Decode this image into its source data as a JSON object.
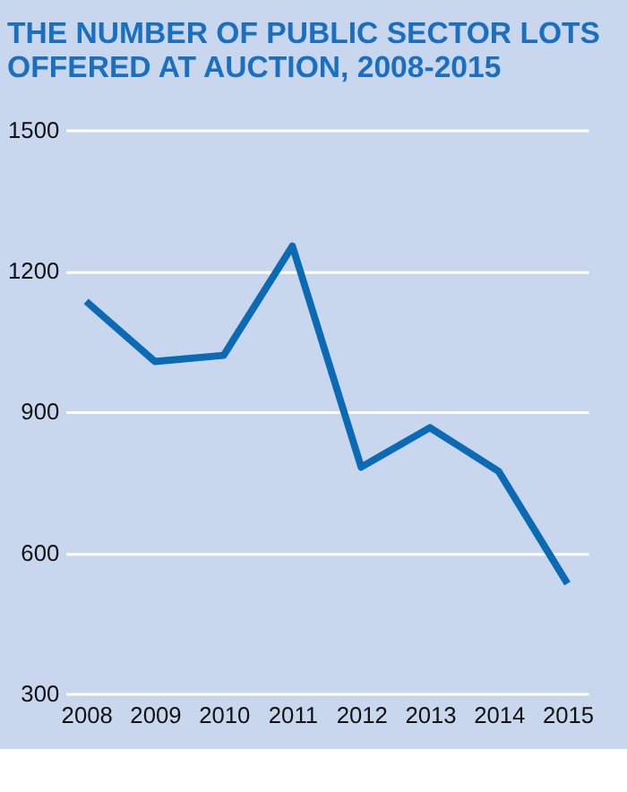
{
  "chart_data": {
    "type": "line",
    "title": "THE NUMBER OF PUBLIC SECTOR LOTS OFFERED AT AUCTION, 2008-2015",
    "categories": [
      "2008",
      "2009",
      "2010",
      "2011",
      "2012",
      "2013",
      "2014",
      "2015"
    ],
    "series": [
      {
        "color": "#0a6ab4",
        "values": [
          1135,
          1007,
          1020,
          1253,
          782,
          866,
          773,
          534
        ]
      }
    ],
    "ylim": [
      300,
      1500
    ],
    "yticks": [
      300,
      600,
      900,
      1200,
      1500
    ],
    "grid": "y",
    "legend": false,
    "marker": "none",
    "line_style": "solid"
  }
}
